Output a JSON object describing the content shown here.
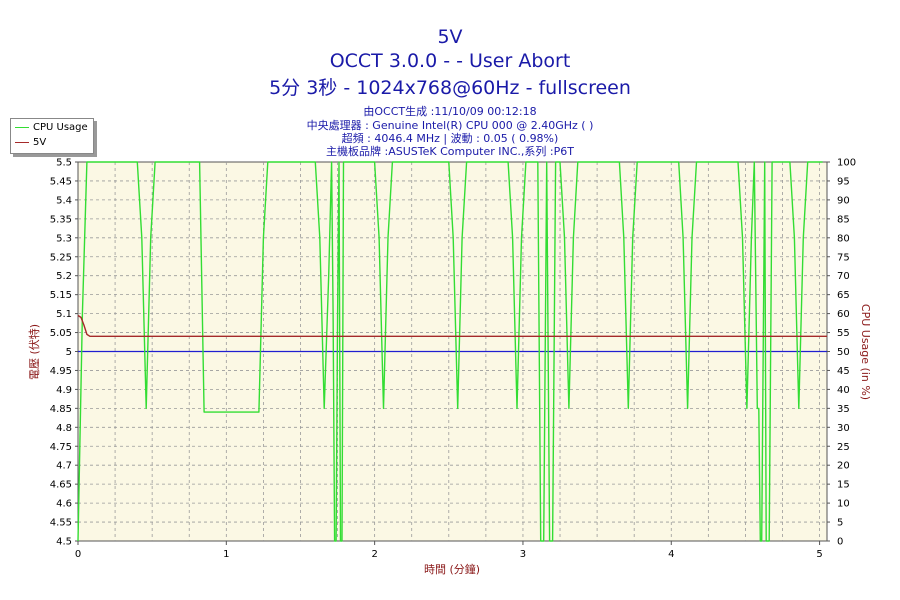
{
  "header": {
    "title": "5V",
    "subtitle1": "OCCT 3.0.0 -  - User Abort",
    "subtitle2": "5分 3秒 - 1024x768@60Hz - fullscreen",
    "info1": "由OCCT生成 :11/10/09 00:12:18",
    "info2": "中央處理器 : Genuine Intel(R) CPU 000 @ 2.40GHz (  )",
    "info3": "超頻 : 4046.4 MHz | 波動 : 0.05 ( 0.98%)",
    "info4": "主機板品牌 :ASUSTeK Computer INC.,系列 :P6T"
  },
  "chart_data": {
    "type": "line",
    "xlabel": "時間 (分鐘)",
    "ylabel": "電壓 (伏特)",
    "y2label": "CPU Usage (in %)",
    "xlim": [
      0,
      5.05
    ],
    "ylim": [
      4.5,
      5.5
    ],
    "y2lim": [
      0,
      100
    ],
    "x_ticks": [
      "0",
      "1",
      "2",
      "3",
      "4",
      "5"
    ],
    "y_ticks": [
      "4.5",
      "4.55",
      "4.6",
      "4.65",
      "4.7",
      "4.75",
      "4.8",
      "4.85",
      "4.9",
      "4.95",
      "5",
      "5.05",
      "5.1",
      "5.15",
      "5.2",
      "5.25",
      "5.3",
      "5.35",
      "5.4",
      "5.45",
      "5.5"
    ],
    "y2_ticks": [
      "0",
      "5",
      "10",
      "15",
      "20",
      "25",
      "30",
      "35",
      "40",
      "45",
      "50",
      "55",
      "60",
      "65",
      "70",
      "75",
      "80",
      "85",
      "90",
      "95",
      "100"
    ],
    "grid": true,
    "legend_position": "top-left",
    "reference_line": 5.0,
    "series": [
      {
        "name": "CPU Usage",
        "axis": "right",
        "color": "#33dd33",
        "x": [
          0,
          0.03,
          0.06,
          0.1,
          0.4,
          0.43,
          0.46,
          0.49,
          0.52,
          0.82,
          0.85,
          1.22,
          1.25,
          1.28,
          1.6,
          1.63,
          1.66,
          1.69,
          1.71,
          1.72,
          1.73,
          1.74,
          1.75,
          1.76,
          1.77,
          1.78,
          1.79,
          2.0,
          2.03,
          2.06,
          2.09,
          2.12,
          2.5,
          2.53,
          2.56,
          2.59,
          2.62,
          2.9,
          2.93,
          2.96,
          2.99,
          3.02,
          3.1,
          3.12,
          3.14,
          3.16,
          3.18,
          3.2,
          3.22,
          3.25,
          3.28,
          3.31,
          3.34,
          3.37,
          3.65,
          3.68,
          3.71,
          3.74,
          3.77,
          4.05,
          4.08,
          4.11,
          4.14,
          4.17,
          4.45,
          4.48,
          4.51,
          4.54,
          4.56,
          4.58,
          4.59,
          4.6,
          4.61,
          4.63,
          4.64,
          4.66,
          4.68,
          4.7,
          4.72,
          4.8,
          4.83,
          4.86,
          4.89,
          4.92,
          5.0,
          5.02
        ],
        "values": [
          0,
          60,
          100,
          100,
          100,
          80,
          35,
          80,
          100,
          100,
          34,
          34,
          80,
          100,
          100,
          80,
          35,
          70,
          100,
          60,
          0,
          0,
          60,
          100,
          0,
          0,
          100,
          100,
          80,
          35,
          80,
          100,
          100,
          80,
          35,
          80,
          100,
          100,
          80,
          35,
          80,
          100,
          100,
          0,
          0,
          100,
          0,
          0,
          100,
          100,
          80,
          35,
          80,
          100,
          100,
          80,
          35,
          80,
          100,
          100,
          80,
          35,
          80,
          100,
          100,
          80,
          35,
          80,
          100,
          35,
          35,
          0,
          0,
          100,
          0,
          0,
          100,
          100,
          100,
          100,
          80,
          35,
          80,
          100,
          100,
          100
        ]
      },
      {
        "name": "5V",
        "axis": "left",
        "color": "#a52a2a",
        "x": [
          0,
          0.02,
          0.04,
          0.06,
          0.08,
          5.05
        ],
        "values": [
          5.095,
          5.09,
          5.07,
          5.045,
          5.04,
          5.04
        ]
      }
    ]
  }
}
